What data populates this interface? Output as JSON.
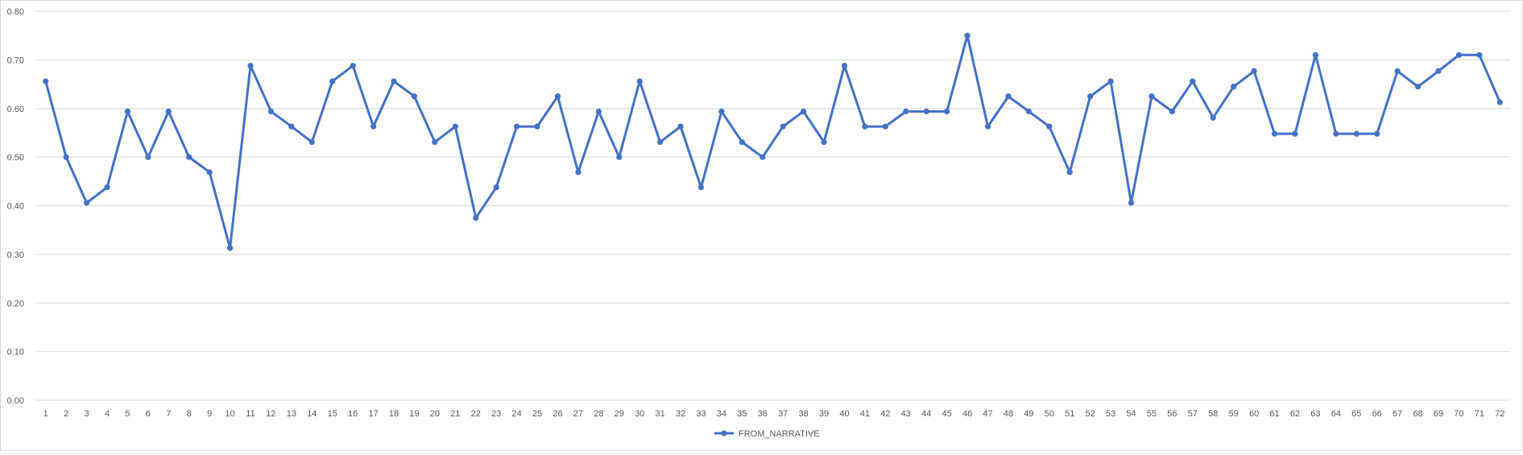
{
  "chart_data": {
    "type": "line",
    "title": "",
    "xlabel": "",
    "ylabel": "",
    "ylim": [
      0,
      0.8
    ],
    "yticks": [
      "0.00",
      "0.10",
      "0.20",
      "0.30",
      "0.40",
      "0.50",
      "0.60",
      "0.70",
      "0.80"
    ],
    "categories": [
      "1",
      "2",
      "3",
      "4",
      "5",
      "6",
      "7",
      "8",
      "9",
      "10",
      "11",
      "12",
      "13",
      "14",
      "15",
      "16",
      "17",
      "18",
      "19",
      "20",
      "21",
      "22",
      "23",
      "24",
      "25",
      "26",
      "27",
      "28",
      "29",
      "30",
      "31",
      "32",
      "33",
      "34",
      "35",
      "36",
      "37",
      "38",
      "39",
      "40",
      "41",
      "42",
      "43",
      "44",
      "45",
      "46",
      "47",
      "48",
      "49",
      "50",
      "51",
      "52",
      "53",
      "54",
      "55",
      "56",
      "57",
      "58",
      "59",
      "60",
      "61",
      "62",
      "63",
      "64",
      "65",
      "66",
      "67",
      "68",
      "69",
      "70",
      "71",
      "72"
    ],
    "series": [
      {
        "name": "FROM_NARRATIVE",
        "color": "#4472c4",
        "values": [
          0.656,
          0.5,
          0.406,
          0.438,
          0.594,
          0.5,
          0.594,
          0.5,
          0.469,
          0.313,
          0.688,
          0.594,
          0.563,
          0.531,
          0.656,
          0.688,
          0.563,
          0.656,
          0.625,
          0.531,
          0.563,
          0.375,
          0.438,
          0.563,
          0.563,
          0.625,
          0.469,
          0.594,
          0.5,
          0.656,
          0.531,
          0.563,
          0.438,
          0.594,
          0.531,
          0.5,
          0.563,
          0.594,
          0.531,
          0.688,
          0.563,
          0.563,
          0.594,
          0.594,
          0.594,
          0.75,
          0.563,
          0.625,
          0.594,
          0.563,
          0.469,
          0.625,
          0.656,
          0.406,
          0.625,
          0.594,
          0.656,
          0.581,
          0.645,
          0.677,
          0.548,
          0.548,
          0.71,
          0.548,
          0.548,
          0.548,
          0.677,
          0.645,
          0.677,
          0.71,
          0.71,
          0.613
        ]
      }
    ],
    "grid": true,
    "legend": "bottom-center"
  }
}
